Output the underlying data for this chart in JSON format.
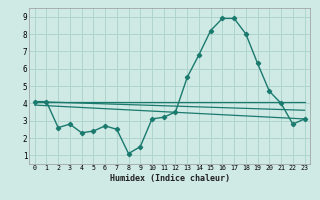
{
  "title": "",
  "xlabel": "Humidex (Indice chaleur)",
  "background_color": "#cfe9e5",
  "grid_color": "#b0d4ce",
  "line_color": "#1a7a6e",
  "xlim": [
    -0.5,
    23.5
  ],
  "ylim": [
    0.5,
    9.5
  ],
  "xticks": [
    0,
    1,
    2,
    3,
    4,
    5,
    6,
    7,
    8,
    9,
    10,
    11,
    12,
    13,
    14,
    15,
    16,
    17,
    18,
    19,
    20,
    21,
    22,
    23
  ],
  "yticks": [
    1,
    2,
    3,
    4,
    5,
    6,
    7,
    8,
    9
  ],
  "line1_x": [
    0,
    1,
    2,
    3,
    4,
    5,
    6,
    7,
    8,
    9,
    10,
    11,
    12,
    13,
    14,
    15,
    16,
    17,
    18,
    19,
    20,
    21,
    22,
    23
  ],
  "line1_y": [
    4.1,
    4.1,
    2.6,
    2.8,
    2.3,
    2.4,
    2.7,
    2.5,
    1.1,
    1.5,
    3.1,
    3.2,
    3.5,
    5.5,
    6.8,
    8.2,
    8.9,
    8.9,
    8.0,
    6.3,
    4.7,
    4.0,
    2.8,
    3.1
  ],
  "line2_x": [
    0,
    23
  ],
  "line2_y": [
    4.1,
    3.6
  ],
  "line3_x": [
    0,
    23
  ],
  "line3_y": [
    4.1,
    4.1
  ],
  "line4_x": [
    0,
    23
  ],
  "line4_y": [
    3.9,
    3.1
  ]
}
